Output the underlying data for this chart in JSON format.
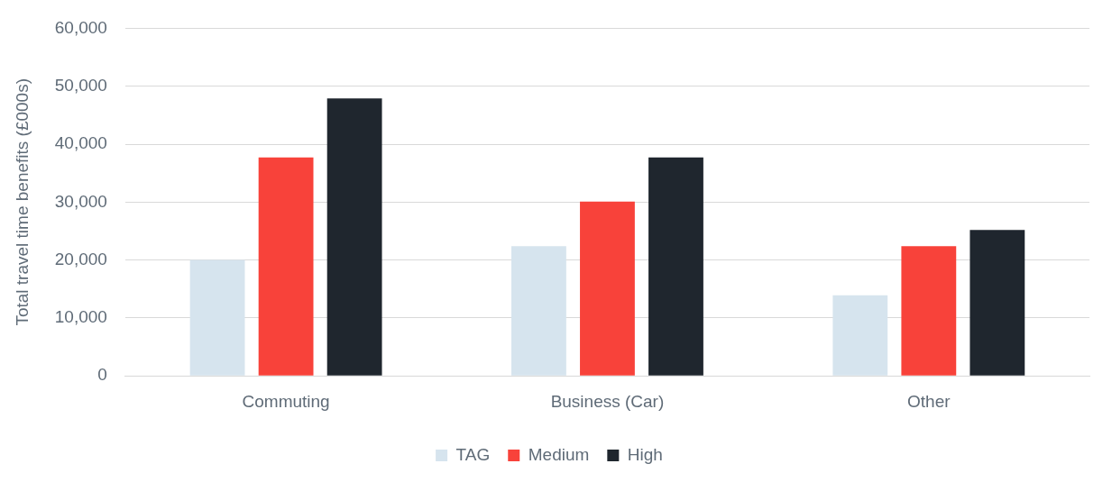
{
  "chart_data": {
    "type": "bar",
    "ylabel": "Total travel time benefits (£000s)",
    "categories": [
      "Commuting",
      "Business (Car)",
      "Other"
    ],
    "series": [
      {
        "name": "TAG",
        "color": "#d6e4ee",
        "values": [
          20000,
          22400,
          13900
        ]
      },
      {
        "name": "Medium",
        "color": "#f8423a",
        "values": [
          37700,
          30100,
          22400
        ]
      },
      {
        "name": "High",
        "color": "#1f262e",
        "values": [
          47900,
          37700,
          25200
        ]
      }
    ],
    "ylim": [
      0,
      60000
    ],
    "yticks": [
      {
        "value": 0,
        "label": "0"
      },
      {
        "value": 10000,
        "label": "10,000"
      },
      {
        "value": 20000,
        "label": "20,000"
      },
      {
        "value": 30000,
        "label": "30,000"
      },
      {
        "value": 40000,
        "label": "40,000"
      },
      {
        "value": 50000,
        "label": "50,000"
      },
      {
        "value": 60000,
        "label": "60,000"
      }
    ],
    "grid": "y",
    "legend": "bottom"
  }
}
